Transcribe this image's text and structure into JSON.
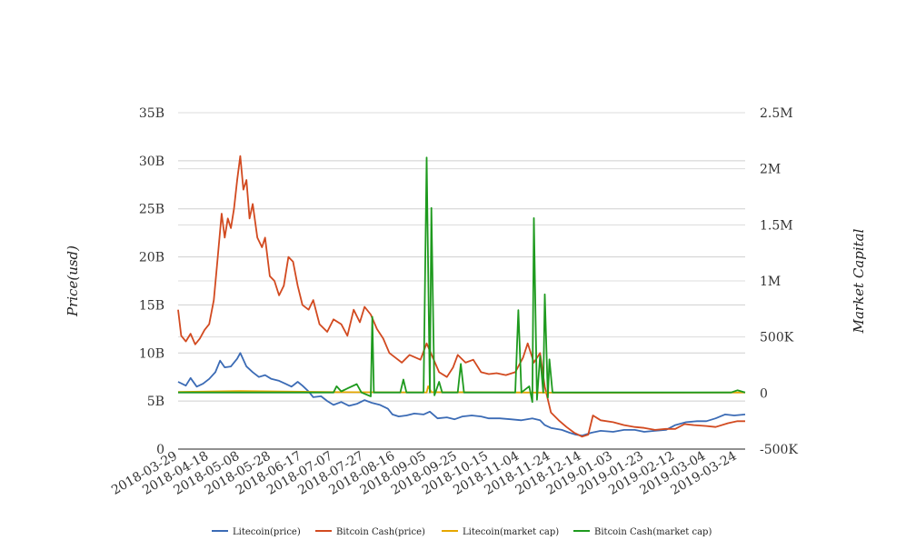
{
  "chart_data": {
    "type": "line",
    "y_left": {
      "label": "Price(usd)",
      "ticks": [
        "0",
        "5B",
        "10B",
        "15B",
        "20B",
        "25B",
        "30B",
        "35B"
      ],
      "range": [
        0,
        35000000000
      ]
    },
    "y_right": {
      "label": "Market Capital",
      "ticks": [
        "-500K",
        "0",
        "500K",
        "1M",
        "1.5M",
        "2M",
        "2.5M"
      ],
      "range": [
        -500000,
        2500000
      ]
    },
    "x_ticks": [
      "2018-03-29",
      "2018-04-18",
      "2018-05-08",
      "2018-05-28",
      "2018-06-17",
      "2018-07-07",
      "2018-07-27",
      "2018-08-16",
      "2018-09-05",
      "2018-09-25",
      "2018-10-15",
      "2018-11-04",
      "2018-11-24",
      "2018-12-14",
      "2019-01-03",
      "2019-01-23",
      "2019-02-12",
      "2019-03-04",
      "2019-03-24"
    ],
    "x_range": [
      "2018-03-29",
      "2019-03-29"
    ],
    "grid": true,
    "legend_position": "bottom",
    "series": [
      {
        "name": "Litecoin(price)",
        "axis": "left",
        "color": "#3b6bb5",
        "points": [
          [
            "2018-03-29",
            7000000000.0
          ],
          [
            "2018-04-03",
            6600000000.0
          ],
          [
            "2018-04-06",
            7400000000.0
          ],
          [
            "2018-04-10",
            6500000000.0
          ],
          [
            "2018-04-14",
            6800000000.0
          ],
          [
            "2018-04-18",
            7300000000.0
          ],
          [
            "2018-04-22",
            8000000000.0
          ],
          [
            "2018-04-25",
            9200000000.0
          ],
          [
            "2018-04-28",
            8500000000.0
          ],
          [
            "2018-05-02",
            8600000000.0
          ],
          [
            "2018-05-06",
            9400000000.0
          ],
          [
            "2018-05-08",
            10000000000.0
          ],
          [
            "2018-05-12",
            8600000000.0
          ],
          [
            "2018-05-16",
            8000000000.0
          ],
          [
            "2018-05-20",
            7500000000.0
          ],
          [
            "2018-05-24",
            7700000000.0
          ],
          [
            "2018-05-28",
            7300000000.0
          ],
          [
            "2018-06-02",
            7100000000.0
          ],
          [
            "2018-06-06",
            6800000000.0
          ],
          [
            "2018-06-10",
            6500000000.0
          ],
          [
            "2018-06-14",
            7000000000.0
          ],
          [
            "2018-06-17",
            6600000000.0
          ],
          [
            "2018-06-21",
            6000000000.0
          ],
          [
            "2018-06-24",
            5400000000.0
          ],
          [
            "2018-06-29",
            5500000000.0
          ],
          [
            "2018-07-03",
            5000000000.0
          ],
          [
            "2018-07-07",
            4600000000.0
          ],
          [
            "2018-07-12",
            4900000000.0
          ],
          [
            "2018-07-17",
            4500000000.0
          ],
          [
            "2018-07-22",
            4700000000.0
          ],
          [
            "2018-07-27",
            5100000000.0
          ],
          [
            "2018-08-01",
            4800000000.0
          ],
          [
            "2018-08-06",
            4600000000.0
          ],
          [
            "2018-08-11",
            4200000000.0
          ],
          [
            "2018-08-14",
            3600000000.0
          ],
          [
            "2018-08-18",
            3400000000.0
          ],
          [
            "2018-08-23",
            3500000000.0
          ],
          [
            "2018-08-28",
            3700000000.0
          ],
          [
            "2018-09-03",
            3600000000.0
          ],
          [
            "2018-09-07",
            3900000000.0
          ],
          [
            "2018-09-12",
            3200000000.0
          ],
          [
            "2018-09-18",
            3300000000.0
          ],
          [
            "2018-09-23",
            3100000000.0
          ],
          [
            "2018-09-28",
            3400000000.0
          ],
          [
            "2018-10-04",
            3500000000.0
          ],
          [
            "2018-10-10",
            3400000000.0
          ],
          [
            "2018-10-15",
            3200000000.0
          ],
          [
            "2018-10-22",
            3200000000.0
          ],
          [
            "2018-10-29",
            3100000000.0
          ],
          [
            "2018-11-05",
            3000000000.0
          ],
          [
            "2018-11-12",
            3200000000.0
          ],
          [
            "2018-11-17",
            3000000000.0
          ],
          [
            "2018-11-20",
            2500000000.0
          ],
          [
            "2018-11-24",
            2200000000.0
          ],
          [
            "2018-12-01",
            2000000000.0
          ],
          [
            "2018-12-06",
            1700000000.0
          ],
          [
            "2018-12-10",
            1500000000.0
          ],
          [
            "2018-12-14",
            1400000000.0
          ],
          [
            "2018-12-20",
            1700000000.0
          ],
          [
            "2018-12-26",
            1900000000.0
          ],
          [
            "2019-01-03",
            1800000000.0
          ],
          [
            "2019-01-10",
            2000000000.0
          ],
          [
            "2019-01-17",
            2000000000.0
          ],
          [
            "2019-01-23",
            1800000000.0
          ],
          [
            "2019-01-30",
            1900000000.0
          ],
          [
            "2019-02-06",
            2000000000.0
          ],
          [
            "2019-02-12",
            2500000000.0
          ],
          [
            "2019-02-19",
            2800000000.0
          ],
          [
            "2019-02-26",
            2900000000.0
          ],
          [
            "2019-03-04",
            2900000000.0
          ],
          [
            "2019-03-10",
            3200000000.0
          ],
          [
            "2019-03-16",
            3600000000.0
          ],
          [
            "2019-03-22",
            3500000000.0
          ],
          [
            "2019-03-29",
            3600000000.0
          ]
        ]
      },
      {
        "name": "Bitcoin Cash(price)",
        "axis": "left",
        "color": "#d24a20",
        "points": [
          [
            "2018-03-29",
            14500000000.0
          ],
          [
            "2018-03-31",
            11800000000.0
          ],
          [
            "2018-04-03",
            11200000000.0
          ],
          [
            "2018-04-06",
            12000000000.0
          ],
          [
            "2018-04-09",
            10900000000.0
          ],
          [
            "2018-04-12",
            11500000000.0
          ],
          [
            "2018-04-15",
            12400000000.0
          ],
          [
            "2018-04-18",
            13000000000.0
          ],
          [
            "2018-04-21",
            15500000000.0
          ],
          [
            "2018-04-23",
            19000000000.0
          ],
          [
            "2018-04-26",
            24500000000.0
          ],
          [
            "2018-04-28",
            22000000000.0
          ],
          [
            "2018-04-30",
            24000000000.0
          ],
          [
            "2018-05-02",
            23000000000.0
          ],
          [
            "2018-05-04",
            25000000000.0
          ],
          [
            "2018-05-06",
            28000000000.0
          ],
          [
            "2018-05-08",
            30500000000.0
          ],
          [
            "2018-05-10",
            27000000000.0
          ],
          [
            "2018-05-12",
            28000000000.0
          ],
          [
            "2018-05-14",
            24000000000.0
          ],
          [
            "2018-05-16",
            25500000000.0
          ],
          [
            "2018-05-19",
            22000000000.0
          ],
          [
            "2018-05-22",
            21000000000.0
          ],
          [
            "2018-05-24",
            22000000000.0
          ],
          [
            "2018-05-27",
            18000000000.0
          ],
          [
            "2018-05-30",
            17500000000.0
          ],
          [
            "2018-06-02",
            16000000000.0
          ],
          [
            "2018-06-05",
            17000000000.0
          ],
          [
            "2018-06-08",
            20000000000.0
          ],
          [
            "2018-06-11",
            19500000000.0
          ],
          [
            "2018-06-14",
            17000000000.0
          ],
          [
            "2018-06-17",
            15000000000.0
          ],
          [
            "2018-06-21",
            14500000000.0
          ],
          [
            "2018-06-24",
            15500000000.0
          ],
          [
            "2018-06-28",
            13000000000.0
          ],
          [
            "2018-07-03",
            12200000000.0
          ],
          [
            "2018-07-07",
            13500000000.0
          ],
          [
            "2018-07-12",
            13000000000.0
          ],
          [
            "2018-07-16",
            11800000000.0
          ],
          [
            "2018-07-20",
            14500000000.0
          ],
          [
            "2018-07-24",
            13200000000.0
          ],
          [
            "2018-07-27",
            14800000000.0
          ],
          [
            "2018-07-31",
            14000000000.0
          ],
          [
            "2018-08-04",
            12500000000.0
          ],
          [
            "2018-08-08",
            11500000000.0
          ],
          [
            "2018-08-12",
            10000000000.0
          ],
          [
            "2018-08-16",
            9500000000.0
          ],
          [
            "2018-08-20",
            9000000000.0
          ],
          [
            "2018-08-25",
            9800000000.0
          ],
          [
            "2018-09-01",
            9300000000.0
          ],
          [
            "2018-09-05",
            11000000000.0
          ],
          [
            "2018-09-09",
            9500000000.0
          ],
          [
            "2018-09-13",
            8000000000.0
          ],
          [
            "2018-09-18",
            7500000000.0
          ],
          [
            "2018-09-22",
            8500000000.0
          ],
          [
            "2018-09-25",
            9800000000.0
          ],
          [
            "2018-09-30",
            9000000000.0
          ],
          [
            "2018-10-05",
            9300000000.0
          ],
          [
            "2018-10-10",
            8000000000.0
          ],
          [
            "2018-10-15",
            7800000000.0
          ],
          [
            "2018-10-20",
            7900000000.0
          ],
          [
            "2018-10-26",
            7700000000.0
          ],
          [
            "2018-11-01",
            8000000000.0
          ],
          [
            "2018-11-06",
            9500000000.0
          ],
          [
            "2018-11-09",
            11000000000.0
          ],
          [
            "2018-11-13",
            9000000000.0
          ],
          [
            "2018-11-17",
            10000000000.0
          ],
          [
            "2018-11-20",
            6500000000.0
          ],
          [
            "2018-11-24",
            3800000000.0
          ],
          [
            "2018-11-29",
            3000000000.0
          ],
          [
            "2018-12-04",
            2300000000.0
          ],
          [
            "2018-12-09",
            1700000000.0
          ],
          [
            "2018-12-14",
            1300000000.0
          ],
          [
            "2018-12-18",
            1500000000.0
          ],
          [
            "2018-12-21",
            3500000000.0
          ],
          [
            "2018-12-26",
            3000000000.0
          ],
          [
            "2019-01-03",
            2800000000.0
          ],
          [
            "2019-01-10",
            2500000000.0
          ],
          [
            "2019-01-17",
            2300000000.0
          ],
          [
            "2019-01-23",
            2200000000.0
          ],
          [
            "2019-01-30",
            2000000000.0
          ],
          [
            "2019-02-06",
            2100000000.0
          ],
          [
            "2019-02-12",
            2100000000.0
          ],
          [
            "2019-02-18",
            2600000000.0
          ],
          [
            "2019-02-24",
            2500000000.0
          ],
          [
            "2019-03-04",
            2400000000.0
          ],
          [
            "2019-03-10",
            2300000000.0
          ],
          [
            "2019-03-18",
            2700000000.0
          ],
          [
            "2019-03-24",
            2900000000.0
          ],
          [
            "2019-03-29",
            2900000000.0
          ]
        ]
      },
      {
        "name": "Litecoin(market cap)",
        "axis": "right",
        "color": "#e6a700",
        "points": [
          [
            "2018-03-29",
            10000
          ],
          [
            "2018-05-08",
            18000
          ],
          [
            "2018-07-07",
            8000
          ],
          [
            "2018-09-05",
            6000
          ],
          [
            "2018-09-06",
            60000
          ],
          [
            "2018-09-08",
            8000
          ],
          [
            "2018-11-04",
            5000
          ],
          [
            "2018-12-14",
            3000
          ],
          [
            "2019-01-23",
            3000
          ],
          [
            "2019-03-29",
            5000
          ]
        ]
      },
      {
        "name": "Bitcoin Cash(market cap)",
        "axis": "right",
        "color": "#1e9a1e",
        "points": [
          [
            "2018-03-29",
            5000
          ],
          [
            "2018-05-08",
            5000
          ],
          [
            "2018-07-07",
            5000
          ],
          [
            "2018-07-09",
            60000
          ],
          [
            "2018-07-12",
            15000
          ],
          [
            "2018-07-22",
            80000
          ],
          [
            "2018-07-25",
            5000
          ],
          [
            "2018-07-31",
            -30000
          ],
          [
            "2018-08-01",
            680000
          ],
          [
            "2018-08-02",
            5000
          ],
          [
            "2018-08-19",
            5000
          ],
          [
            "2018-08-21",
            120000
          ],
          [
            "2018-08-23",
            5000
          ],
          [
            "2018-09-03",
            5000
          ],
          [
            "2018-09-05",
            2100000
          ],
          [
            "2018-09-07",
            5000
          ],
          [
            "2018-09-08",
            1650000
          ],
          [
            "2018-09-10",
            -20000
          ],
          [
            "2018-09-13",
            100000
          ],
          [
            "2018-09-15",
            5000
          ],
          [
            "2018-09-25",
            5000
          ],
          [
            "2018-09-27",
            260000
          ],
          [
            "2018-09-29",
            5000
          ],
          [
            "2018-11-01",
            5000
          ],
          [
            "2018-11-03",
            740000
          ],
          [
            "2018-11-05",
            5000
          ],
          [
            "2018-11-10",
            60000
          ],
          [
            "2018-11-12",
            -80000
          ],
          [
            "2018-11-13",
            1560000
          ],
          [
            "2018-11-15",
            -60000
          ],
          [
            "2018-11-17",
            330000
          ],
          [
            "2018-11-19",
            5000
          ],
          [
            "2018-11-20",
            880000
          ],
          [
            "2018-11-22",
            -40000
          ],
          [
            "2018-11-23",
            300000
          ],
          [
            "2018-11-25",
            5000
          ],
          [
            "2019-03-20",
            5000
          ],
          [
            "2019-03-24",
            25000
          ],
          [
            "2019-03-29",
            5000
          ]
        ]
      }
    ]
  }
}
